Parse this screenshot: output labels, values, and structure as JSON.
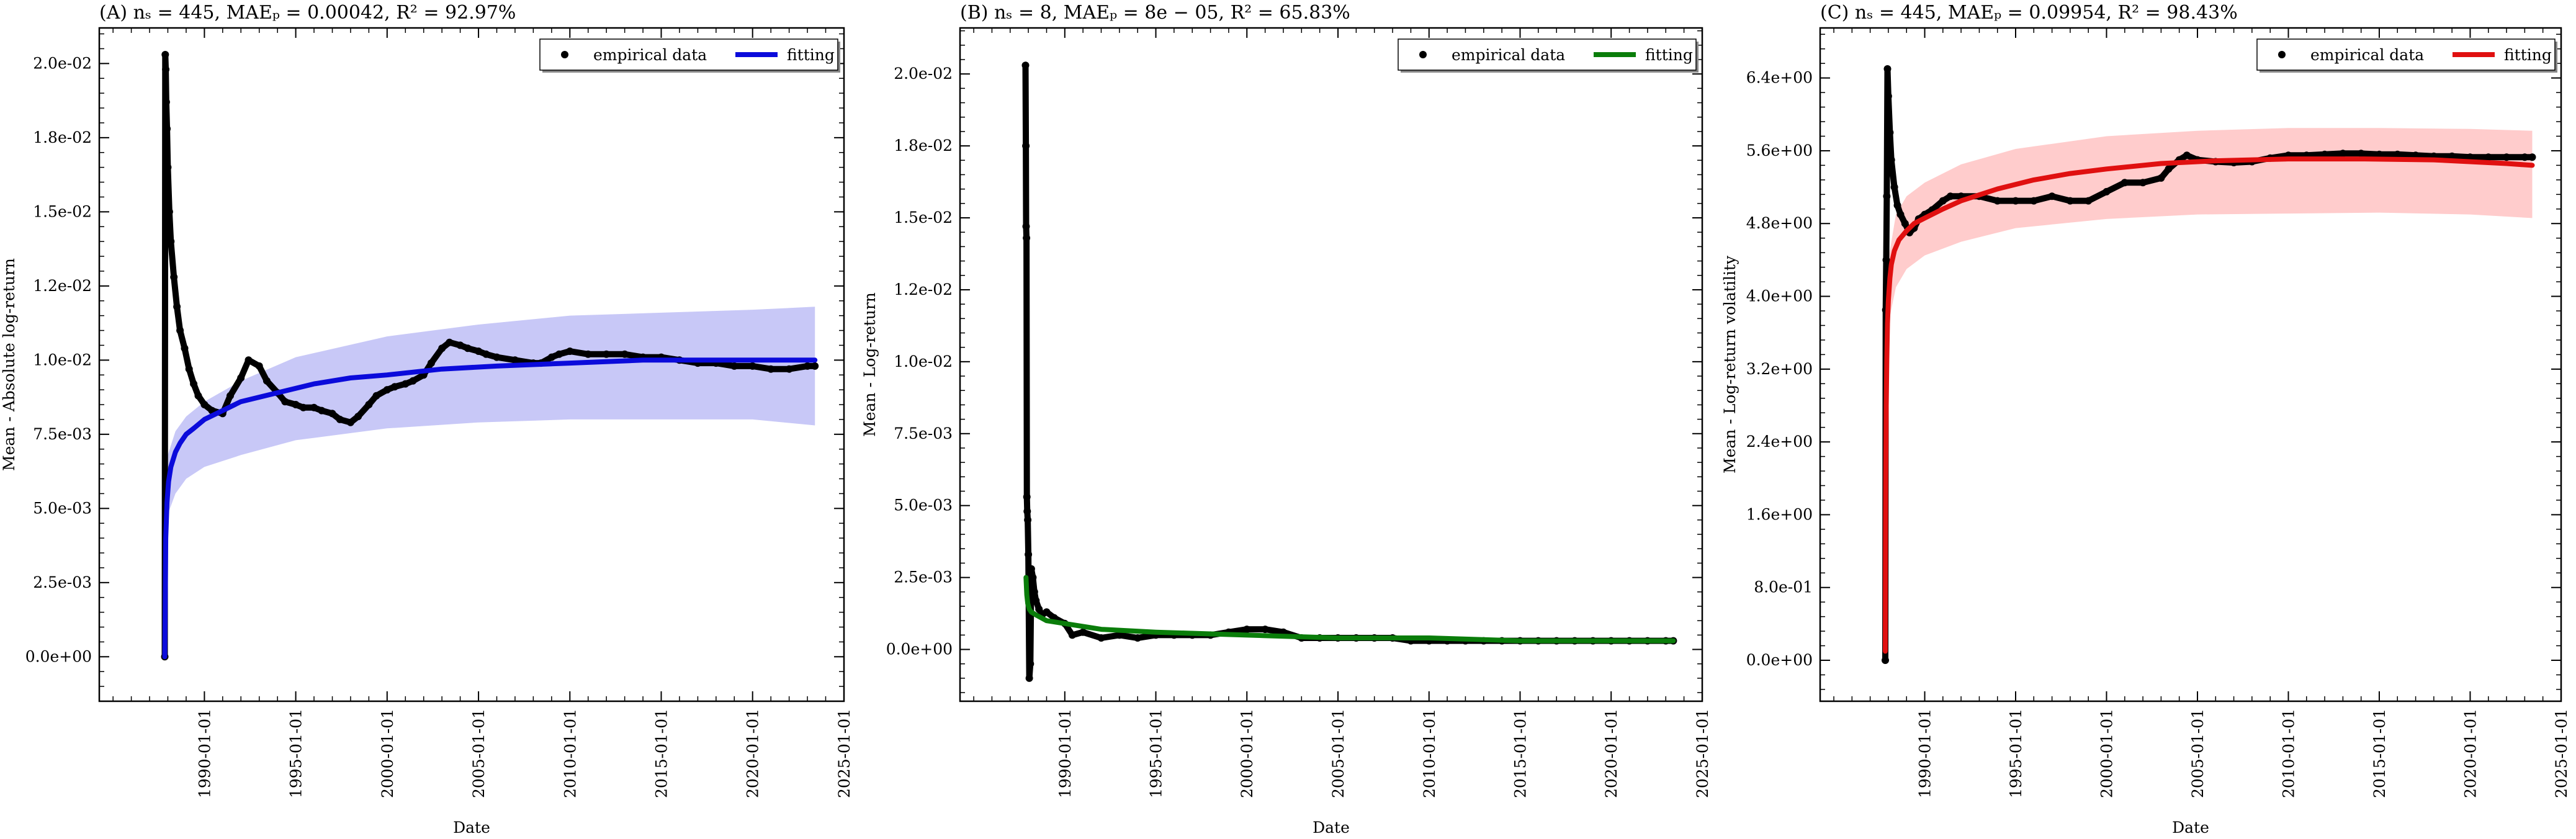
{
  "chart_data": [
    {
      "type": "line",
      "title": "(A) nₛ = 445, MAEₚ = 0.00042, R² = 92.97%",
      "xlabel": "Date",
      "ylabel": "Mean - Absolute log-return",
      "x_ticks": [
        "1990-01-01",
        "1995-01-01",
        "2000-01-01",
        "2005-01-01",
        "2010-01-01",
        "2015-01-01",
        "2020-01-01",
        "2025-01-01"
      ],
      "xlim": [
        "1984-04-01",
        "2025-01-01"
      ],
      "ylim": [
        -0.0015,
        0.0212
      ],
      "y_ticks": [
        0,
        0.0025,
        0.005,
        0.0075,
        0.01,
        0.0125,
        0.015,
        0.0175,
        0.02
      ],
      "y_tick_labels": [
        "0.0e+00",
        "2.5e-03",
        "5.0e-03",
        "7.5e-03",
        "1.0e-02",
        "1.2e-02",
        "1.5e-02",
        "1.8e-02",
        "2.0e-02"
      ],
      "legend": {
        "position": "top-right",
        "entries": [
          "empirical data",
          "fitting"
        ]
      },
      "fit_color": "#0b0bdb",
      "band_color": "#c8c8f7",
      "series": [
        {
          "name": "empirical data",
          "marker": "dot",
          "color": "#000000",
          "x": [
            "1987-11-01",
            "1987-11-10",
            "1987-11-20",
            "1987-12-01",
            "1987-12-15",
            "1988-01-01",
            "1988-02-01",
            "1988-03-01",
            "1988-05-01",
            "1988-07-01",
            "1988-09-01",
            "1988-12-01",
            "1989-03-01",
            "1989-06-01",
            "1989-09-01",
            "1990-01-01",
            "1990-06-01",
            "1991-01-01",
            "1991-06-01",
            "1992-01-01",
            "1992-06-01",
            "1993-01-01",
            "1993-06-01",
            "1994-01-01",
            "1994-06-01",
            "1995-01-01",
            "1995-06-01",
            "1996-01-01",
            "1996-06-01",
            "1997-01-01",
            "1997-06-01",
            "1998-01-01",
            "1998-06-01",
            "1999-01-01",
            "1999-06-01",
            "2000-01-01",
            "2000-06-01",
            "2001-01-01",
            "2001-06-01",
            "2002-01-01",
            "2002-06-01",
            "2003-01-01",
            "2003-06-01",
            "2004-01-01",
            "2004-06-01",
            "2005-01-01",
            "2005-06-01",
            "2006-01-01",
            "2007-01-01",
            "2008-01-01",
            "2008-06-01",
            "2009-01-01",
            "2009-06-01",
            "2010-01-01",
            "2011-01-01",
            "2012-01-01",
            "2013-01-01",
            "2014-01-01",
            "2015-01-01",
            "2016-01-01",
            "2017-01-01",
            "2018-01-01",
            "2019-01-01",
            "2020-01-01",
            "2021-01-01",
            "2022-01-01",
            "2023-01-01",
            "2023-06-01"
          ],
          "y": [
            0,
            0.0203,
            0.0198,
            0.0187,
            0.0178,
            0.0165,
            0.015,
            0.014,
            0.0128,
            0.0118,
            0.011,
            0.0104,
            0.0097,
            0.0092,
            0.0088,
            0.0085,
            0.0083,
            0.0082,
            0.0088,
            0.0094,
            0.01,
            0.0098,
            0.0093,
            0.0089,
            0.0086,
            0.0085,
            0.0084,
            0.0084,
            0.0083,
            0.0082,
            0.008,
            0.0079,
            0.0081,
            0.0085,
            0.0088,
            0.009,
            0.0091,
            0.0092,
            0.0093,
            0.0095,
            0.0099,
            0.0104,
            0.0106,
            0.0105,
            0.0104,
            0.0103,
            0.0102,
            0.0101,
            0.01,
            0.0099,
            0.0099,
            0.0101,
            0.0102,
            0.0103,
            0.0102,
            0.0102,
            0.0102,
            0.0101,
            0.0101,
            0.01,
            0.0099,
            0.0099,
            0.0098,
            0.0098,
            0.0097,
            0.0097,
            0.0098,
            0.0098
          ]
        },
        {
          "name": "fitting",
          "x": [
            "1987-11-01",
            "1987-11-20",
            "1987-12-15",
            "1988-01-15",
            "1988-03-01",
            "1988-06-01",
            "1988-09-01",
            "1989-01-01",
            "1989-06-01",
            "1990-01-01",
            "1991-01-01",
            "1992-01-01",
            "1994-01-01",
            "1996-01-01",
            "1998-01-01",
            "2000-01-01",
            "2003-01-01",
            "2006-01-01",
            "2010-01-01",
            "2014-01-01",
            "2018-01-01",
            "2022-01-01",
            "2023-06-01"
          ],
          "y": [
            0,
            0.004,
            0.0052,
            0.0059,
            0.0064,
            0.0069,
            0.0072,
            0.0075,
            0.0077,
            0.008,
            0.0083,
            0.0086,
            0.0089,
            0.0092,
            0.0094,
            0.0095,
            0.0097,
            0.0098,
            0.0099,
            0.01,
            0.01,
            0.01,
            0.01
          ]
        },
        {
          "name": "band_upper",
          "x": [
            "1987-11-01",
            "1987-11-20",
            "1988-01-01",
            "1988-06-01",
            "1989-01-01",
            "1990-01-01",
            "1992-01-01",
            "1995-01-01",
            "2000-01-01",
            "2005-01-01",
            "2010-01-01",
            "2015-01-01",
            "2020-01-01",
            "2023-06-01"
          ],
          "y": [
            0,
            0.005,
            0.0068,
            0.0076,
            0.0081,
            0.0086,
            0.0093,
            0.0101,
            0.0108,
            0.0112,
            0.0115,
            0.0116,
            0.0117,
            0.0118
          ]
        },
        {
          "name": "band_lower",
          "x": [
            "1987-11-01",
            "1987-11-20",
            "1988-01-01",
            "1988-06-01",
            "1989-01-01",
            "1990-01-01",
            "1992-01-01",
            "1995-01-01",
            "2000-01-01",
            "2005-01-01",
            "2010-01-01",
            "2015-01-01",
            "2020-01-01",
            "2023-06-01"
          ],
          "y": [
            0,
            0.0035,
            0.0048,
            0.0055,
            0.006,
            0.0064,
            0.0068,
            0.0073,
            0.0077,
            0.0079,
            0.008,
            0.008,
            0.008,
            0.0078
          ]
        }
      ]
    },
    {
      "type": "line",
      "title": "(B) nₛ = 8, MAEₚ = 8e − 05, R² = 65.83%",
      "xlabel": "Date",
      "ylabel": "Mean - Log-return",
      "x_ticks": [
        "1990-01-01",
        "1995-01-01",
        "2000-01-01",
        "2005-01-01",
        "2010-01-01",
        "2015-01-01",
        "2020-01-01",
        "2025-01-01"
      ],
      "xlim": [
        "1984-04-01",
        "2025-01-01"
      ],
      "ylim": [
        -0.0018,
        0.0216
      ],
      "y_ticks": [
        0,
        0.0025,
        0.005,
        0.0075,
        0.01,
        0.0125,
        0.015,
        0.0175,
        0.02
      ],
      "y_tick_labels": [
        "0.0e+00",
        "2.5e-03",
        "5.0e-03",
        "7.5e-03",
        "1.0e-02",
        "1.2e-02",
        "1.5e-02",
        "1.8e-02",
        "2.0e-02"
      ],
      "legend": {
        "position": "top-right",
        "entries": [
          "empirical data",
          "fitting"
        ]
      },
      "fit_color": "#0a7d0a",
      "band_color": null,
      "series": [
        {
          "name": "empirical data",
          "marker": "dot",
          "color": "#000000",
          "x": [
            "1987-11-05",
            "1987-11-12",
            "1987-11-18",
            "1987-11-25",
            "1987-12-02",
            "1987-12-10",
            "1987-12-20",
            "1988-01-01",
            "1988-01-20",
            "1988-02-10",
            "1988-03-01",
            "1988-04-01",
            "1988-05-01",
            "1988-06-01",
            "1988-08-01",
            "1988-10-01",
            "1989-01-01",
            "1989-06-01",
            "1990-01-01",
            "1990-06-01",
            "1991-01-01",
            "1992-01-01",
            "1993-01-01",
            "1994-01-01",
            "1995-01-01",
            "1996-01-01",
            "1997-01-01",
            "1998-01-01",
            "1999-01-01",
            "2000-01-01",
            "2001-01-01",
            "2002-01-01",
            "2003-01-01",
            "2004-01-01",
            "2005-01-01",
            "2006-01-01",
            "2007-01-01",
            "2008-01-01",
            "2009-01-01",
            "2010-01-01",
            "2011-01-01",
            "2012-01-01",
            "2013-01-01",
            "2014-01-01",
            "2015-01-01",
            "2016-01-01",
            "2017-01-01",
            "2018-01-01",
            "2019-01-01",
            "2020-01-01",
            "2021-01-01",
            "2022-01-01",
            "2023-01-01",
            "2023-06-01"
          ],
          "y": [
            0.0203,
            0.0175,
            0.0147,
            0.0143,
            0.0053,
            0.0048,
            0.0045,
            0.0033,
            -0.001,
            -0.0005,
            0.0028,
            0.0025,
            0.002,
            0.0017,
            0.0014,
            0.0012,
            0.0013,
            0.0011,
            0.0009,
            0.0005,
            0.0006,
            0.0004,
            0.0005,
            0.0004,
            0.0005,
            0.0005,
            0.0005,
            0.0005,
            0.0006,
            0.0007,
            0.0007,
            0.0006,
            0.0004,
            0.0004,
            0.0004,
            0.0004,
            0.0004,
            0.0004,
            0.0003,
            0.0003,
            0.0003,
            0.0003,
            0.0003,
            0.0003,
            0.0003,
            0.0003,
            0.0003,
            0.0003,
            0.0003,
            0.0003,
            0.0003,
            0.0003,
            0.0003,
            0.0003
          ]
        },
        {
          "name": "fitting",
          "x": [
            "1987-11-15",
            "1987-12-01",
            "1987-12-20",
            "1988-01-20",
            "1988-03-01",
            "1988-06-01",
            "1989-01-01",
            "1990-01-01",
            "1992-01-01",
            "1995-01-01",
            "2000-01-01",
            "2005-01-01",
            "2010-01-01",
            "2015-01-01",
            "2020-01-01",
            "2023-06-01"
          ],
          "y": [
            0.0025,
            0.0019,
            0.0016,
            0.0014,
            0.0013,
            0.0012,
            0.001,
            0.0009,
            0.0007,
            0.0006,
            0.0005,
            0.0004,
            0.0004,
            0.0003,
            0.0003,
            0.0003
          ]
        }
      ]
    },
    {
      "type": "line",
      "title": "(C) nₛ = 445, MAEₚ = 0.09954, R² = 98.43%",
      "xlabel": "Date",
      "ylabel": "Mean - Log-return volatility",
      "x_ticks": [
        "1990-01-01",
        "1995-01-01",
        "2000-01-01",
        "2005-01-01",
        "2010-01-01",
        "2015-01-01",
        "2020-01-01",
        "2025-01-01"
      ],
      "xlim": [
        "1984-04-01",
        "2025-01-01"
      ],
      "ylim": [
        -0.45,
        6.95
      ],
      "y_ticks": [
        0,
        0.8,
        1.6,
        2.4,
        3.2,
        4.0,
        4.8,
        5.6,
        6.4
      ],
      "y_tick_labels": [
        "0.0e+00",
        "8.0e-01",
        "1.6e+00",
        "2.4e+00",
        "3.2e+00",
        "4.0e+00",
        "4.8e+00",
        "5.6e+00",
        "6.4e+00"
      ],
      "legend": {
        "position": "top-right",
        "entries": [
          "empirical data",
          "fitting"
        ]
      },
      "fit_color": "#e01010",
      "band_color": "#ffcccc",
      "series": [
        {
          "name": "empirical data",
          "marker": "dot",
          "color": "#000000",
          "x": [
            "1987-11-01",
            "1987-11-10",
            "1987-11-20",
            "1987-12-01",
            "1987-12-15",
            "1988-01-01",
            "1988-02-01",
            "1988-03-01",
            "1988-05-01",
            "1988-07-01",
            "1988-09-01",
            "1988-12-01",
            "1989-03-01",
            "1989-06-01",
            "1989-09-01",
            "1990-01-01",
            "1990-06-01",
            "1991-01-01",
            "1991-06-01",
            "1992-01-01",
            "1993-01-01",
            "1994-01-01",
            "1995-01-01",
            "1996-01-01",
            "1997-01-01",
            "1998-01-01",
            "1999-01-01",
            "2000-01-01",
            "2001-01-01",
            "2002-01-01",
            "2003-01-01",
            "2003-06-01",
            "2004-01-01",
            "2004-06-01",
            "2005-01-01",
            "2006-01-01",
            "2007-01-01",
            "2008-01-01",
            "2009-01-01",
            "2010-01-01",
            "2011-01-01",
            "2012-01-01",
            "2013-01-01",
            "2014-01-01",
            "2015-01-01",
            "2016-01-01",
            "2017-01-01",
            "2018-01-01",
            "2019-01-01",
            "2020-01-01",
            "2021-01-01",
            "2022-01-01",
            "2023-01-01",
            "2023-06-01"
          ],
          "y": [
            0,
            3.85,
            4.4,
            5.1,
            6.5,
            6.2,
            5.8,
            5.5,
            5.2,
            5.0,
            4.9,
            4.8,
            4.7,
            4.75,
            4.85,
            4.9,
            4.95,
            5.05,
            5.1,
            5.1,
            5.1,
            5.05,
            5.05,
            5.05,
            5.1,
            5.05,
            5.05,
            5.15,
            5.25,
            5.25,
            5.3,
            5.4,
            5.5,
            5.55,
            5.5,
            5.48,
            5.47,
            5.48,
            5.52,
            5.55,
            5.55,
            5.56,
            5.57,
            5.57,
            5.56,
            5.56,
            5.55,
            5.54,
            5.54,
            5.53,
            5.53,
            5.53,
            5.53,
            5.53
          ]
        },
        {
          "name": "fitting",
          "x": [
            "1987-11-01",
            "1987-11-05",
            "1987-11-10",
            "1987-11-20",
            "1987-12-01",
            "1987-12-15",
            "1988-01-01",
            "1988-02-01",
            "1988-03-01",
            "1988-05-01",
            "1988-08-01",
            "1989-01-01",
            "1989-06-01",
            "1990-01-01",
            "1991-01-01",
            "1992-01-01",
            "1994-01-01",
            "1996-01-01",
            "1998-01-01",
            "2000-01-01",
            "2003-01-01",
            "2006-01-01",
            "2010-01-01",
            "2014-01-01",
            "2018-01-01",
            "2022-01-01",
            "2023-06-01"
          ],
          "y": [
            0.1,
            1.2,
            2.0,
            2.8,
            3.3,
            3.7,
            3.95,
            4.2,
            4.35,
            4.5,
            4.62,
            4.72,
            4.8,
            4.86,
            4.96,
            5.05,
            5.18,
            5.28,
            5.35,
            5.4,
            5.46,
            5.49,
            5.51,
            5.51,
            5.5,
            5.46,
            5.44
          ]
        },
        {
          "name": "band_upper",
          "x": [
            "1987-11-01",
            "1987-11-10",
            "1987-12-01",
            "1988-01-01",
            "1988-06-01",
            "1989-01-01",
            "1990-01-01",
            "1992-01-01",
            "1995-01-01",
            "2000-01-01",
            "2005-01-01",
            "2010-01-01",
            "2015-01-01",
            "2020-01-01",
            "2023-06-01"
          ],
          "y": [
            0.1,
            2.2,
            3.7,
            4.4,
            4.9,
            5.1,
            5.25,
            5.45,
            5.62,
            5.76,
            5.82,
            5.85,
            5.85,
            5.84,
            5.82
          ]
        },
        {
          "name": "band_lower",
          "x": [
            "1987-11-01",
            "1987-11-10",
            "1987-12-01",
            "1988-01-01",
            "1988-06-01",
            "1989-01-01",
            "1990-01-01",
            "1992-01-01",
            "1995-01-01",
            "2000-01-01",
            "2005-01-01",
            "2010-01-01",
            "2015-01-01",
            "2020-01-01",
            "2023-06-01"
          ],
          "y": [
            0.1,
            1.8,
            3.1,
            3.7,
            4.1,
            4.3,
            4.45,
            4.6,
            4.75,
            4.85,
            4.9,
            4.91,
            4.92,
            4.9,
            4.86
          ]
        }
      ]
    }
  ]
}
